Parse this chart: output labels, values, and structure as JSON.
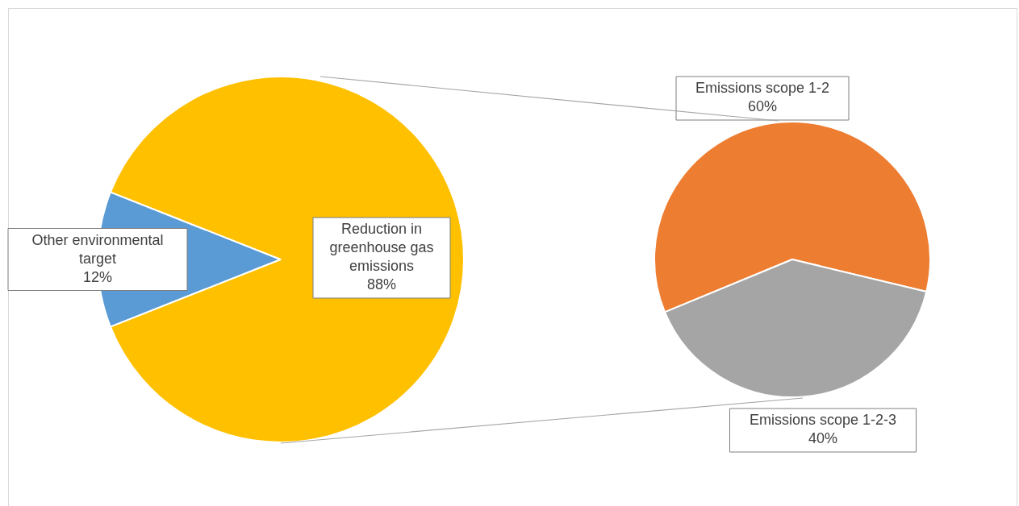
{
  "chart_data": [
    {
      "type": "pie",
      "categories": [
        "Other environmental target",
        "Reduction in greenhouse gas emissions"
      ],
      "values": [
        12,
        88
      ],
      "colors": [
        "#5b9bd5",
        "#ffc000"
      ],
      "value_labels": [
        "12%",
        "88%"
      ]
    },
    {
      "type": "pie",
      "categories": [
        "Emissions scope 1-2",
        "Emissions scope 1-2-3"
      ],
      "values": [
        60,
        40
      ],
      "colors": [
        "#ed7d31",
        "#a5a5a5"
      ],
      "value_labels": [
        "60%",
        "40%"
      ]
    }
  ]
}
